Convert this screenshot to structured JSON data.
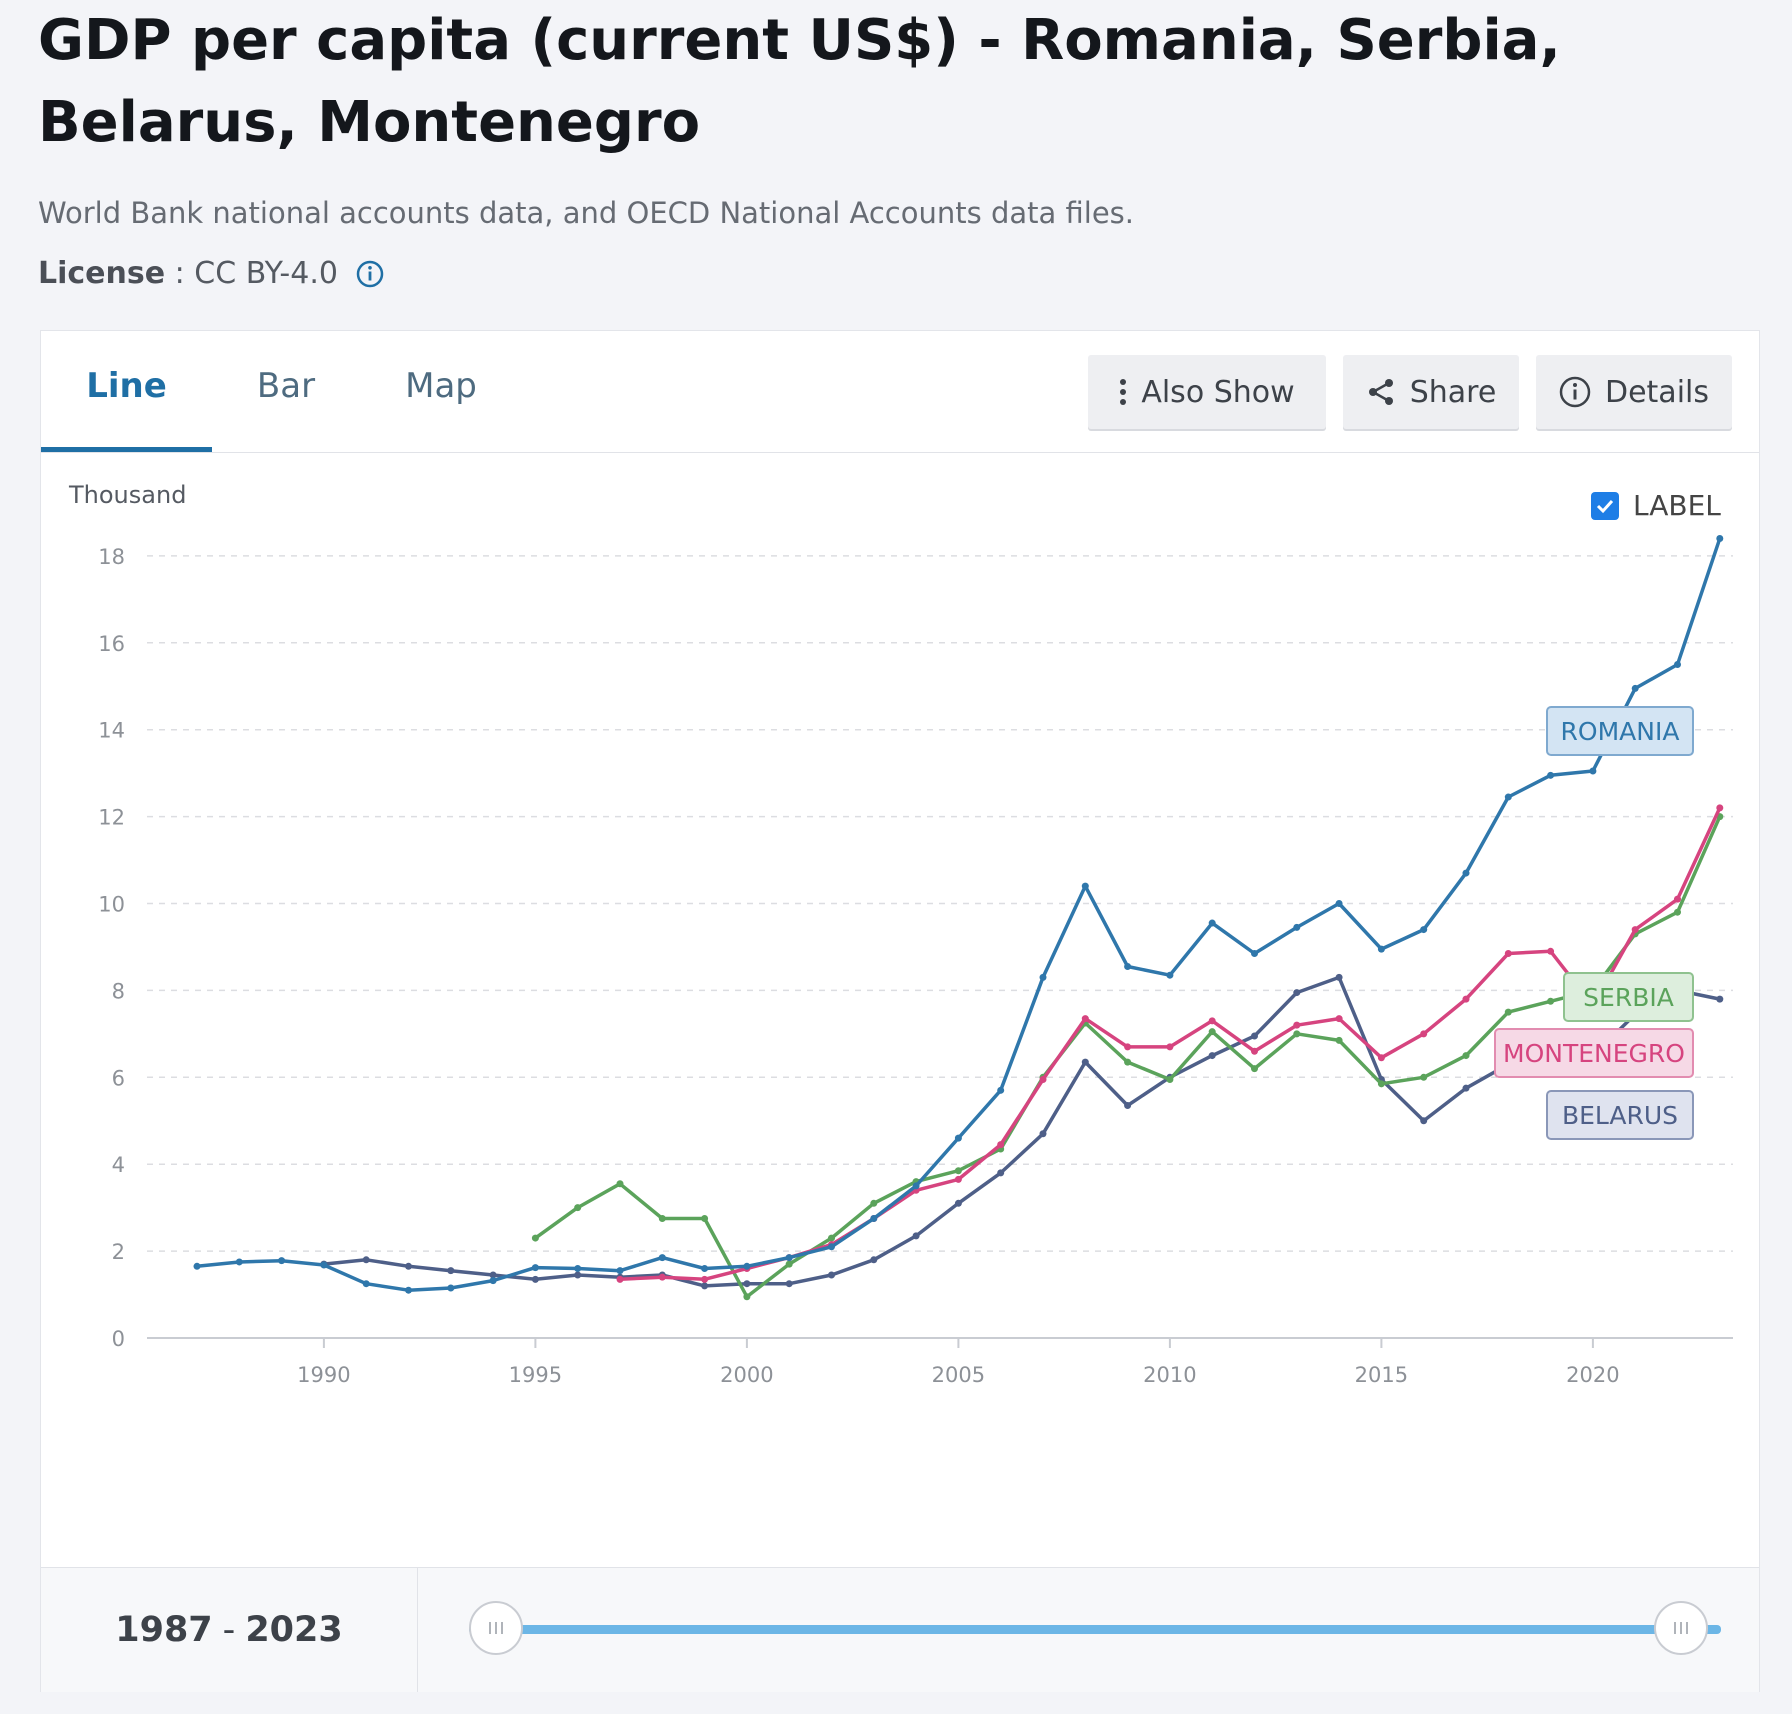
{
  "header": {
    "title": "GDP per capita (current US$) - Romania, Serbia, Belarus, Montenegro",
    "source": "World Bank national accounts data, and OECD National Accounts data files.",
    "license_label": "License",
    "license_sep": " : ",
    "license_value": "CC BY-4.0"
  },
  "tabs": [
    {
      "label": "Line",
      "active": true
    },
    {
      "label": "Bar",
      "active": false
    },
    {
      "label": "Map",
      "active": false
    }
  ],
  "toolbar": {
    "also_show": "Also Show",
    "share": "Share",
    "details": "Details"
  },
  "chart_controls": {
    "unit": "Thousand",
    "label_toggle": "LABEL",
    "label_checked": true
  },
  "range": {
    "start": "1987",
    "sep": "-",
    "end": "2023"
  },
  "chart_data": {
    "type": "line",
    "title": "GDP per capita (current US$) - Romania, Serbia, Belarus, Montenegro",
    "ylabel": "Thousand",
    "xlim": [
      1984,
      2024
    ],
    "ylim": [
      0,
      18
    ],
    "yticks": [
      0,
      2,
      4,
      6,
      8,
      10,
      12,
      14,
      16,
      18
    ],
    "xticks": [
      1990,
      1995,
      2000,
      2005,
      2010,
      2015,
      2020
    ],
    "grid": true,
    "series": [
      {
        "name": "ROMANIA",
        "color": "#2f77ab",
        "x": [
          1987,
          1988,
          1989,
          1990,
          1991,
          1992,
          1993,
          1994,
          1995,
          1996,
          1997,
          1998,
          1999,
          2000,
          2001,
          2002,
          2003,
          2004,
          2005,
          2006,
          2007,
          2008,
          2009,
          2010,
          2011,
          2012,
          2013,
          2014,
          2015,
          2016,
          2017,
          2018,
          2019,
          2020,
          2021,
          2022,
          2023
        ],
        "y": [
          1.65,
          1.75,
          1.78,
          1.68,
          1.25,
          1.1,
          1.15,
          1.32,
          1.62,
          1.6,
          1.55,
          1.85,
          1.6,
          1.65,
          1.85,
          2.1,
          2.75,
          3.5,
          4.6,
          5.7,
          8.3,
          10.4,
          8.55,
          8.35,
          9.55,
          8.85,
          9.45,
          10.0,
          8.95,
          9.4,
          10.7,
          12.45,
          12.95,
          13.05,
          14.95,
          15.5,
          18.4
        ]
      },
      {
        "name": "SERBIA",
        "color": "#5ba35b",
        "x": [
          1995,
          1996,
          1997,
          1998,
          1999,
          2000,
          2001,
          2002,
          2003,
          2004,
          2005,
          2006,
          2007,
          2008,
          2009,
          2010,
          2011,
          2012,
          2013,
          2014,
          2015,
          2016,
          2017,
          2018,
          2019,
          2020,
          2021,
          2022,
          2023
        ],
        "y": [
          2.3,
          3.0,
          3.55,
          2.75,
          2.75,
          0.95,
          1.7,
          2.3,
          3.1,
          3.6,
          3.85,
          4.35,
          6.0,
          7.25,
          6.35,
          5.95,
          7.05,
          6.2,
          7.0,
          6.85,
          5.85,
          6.0,
          6.5,
          7.5,
          7.75,
          8.0,
          9.3,
          9.8,
          12.0
        ]
      },
      {
        "name": "MONTENEGRO",
        "color": "#d6447f",
        "x": [
          1997,
          1998,
          1999,
          2000,
          2001,
          2002,
          2003,
          2004,
          2005,
          2006,
          2007,
          2008,
          2009,
          2010,
          2011,
          2012,
          2013,
          2014,
          2015,
          2016,
          2017,
          2018,
          2019,
          2020,
          2021,
          2022,
          2023
        ],
        "y": [
          1.35,
          1.4,
          1.35,
          1.6,
          1.85,
          2.15,
          2.75,
          3.4,
          3.65,
          4.45,
          5.95,
          7.35,
          6.7,
          6.7,
          7.3,
          6.6,
          7.2,
          7.35,
          6.45,
          7.0,
          7.8,
          8.85,
          8.9,
          7.65,
          9.4,
          10.1,
          12.2
        ]
      },
      {
        "name": "BELARUS",
        "color": "#4e5f88",
        "x": [
          1990,
          1991,
          1992,
          1993,
          1994,
          1995,
          1996,
          1997,
          1998,
          1999,
          2000,
          2001,
          2002,
          2003,
          2004,
          2005,
          2006,
          2007,
          2008,
          2009,
          2010,
          2011,
          2012,
          2013,
          2014,
          2015,
          2016,
          2017,
          2018,
          2019,
          2020,
          2021,
          2022,
          2023
        ],
        "y": [
          1.7,
          1.8,
          1.65,
          1.55,
          1.45,
          1.35,
          1.45,
          1.4,
          1.45,
          1.2,
          1.25,
          1.25,
          1.45,
          1.8,
          2.35,
          3.1,
          3.8,
          4.7,
          6.35,
          5.35,
          6.0,
          6.5,
          6.95,
          7.95,
          8.3,
          5.95,
          5.0,
          5.75,
          6.3,
          6.8,
          6.5,
          7.45,
          8.0,
          7.8
        ]
      }
    ],
    "labels": [
      {
        "series": "ROMANIA",
        "text": "ROMANIA",
        "fill": "#d3e4f3",
        "stroke": "#7fa9cf",
        "color": "#2f77ab"
      },
      {
        "series": "SERBIA",
        "text": "SERBIA",
        "fill": "#ddeedd",
        "stroke": "#8fc28f",
        "color": "#5ba35b"
      },
      {
        "series": "MONTENEGRO",
        "text": "MONTENEGRO",
        "fill": "#f6d9e6",
        "stroke": "#e28cb0",
        "color": "#d6447f"
      },
      {
        "series": "BELARUS",
        "text": "BELARUS",
        "fill": "#dfe3ef",
        "stroke": "#8a97b8",
        "color": "#4e5f88"
      }
    ]
  }
}
